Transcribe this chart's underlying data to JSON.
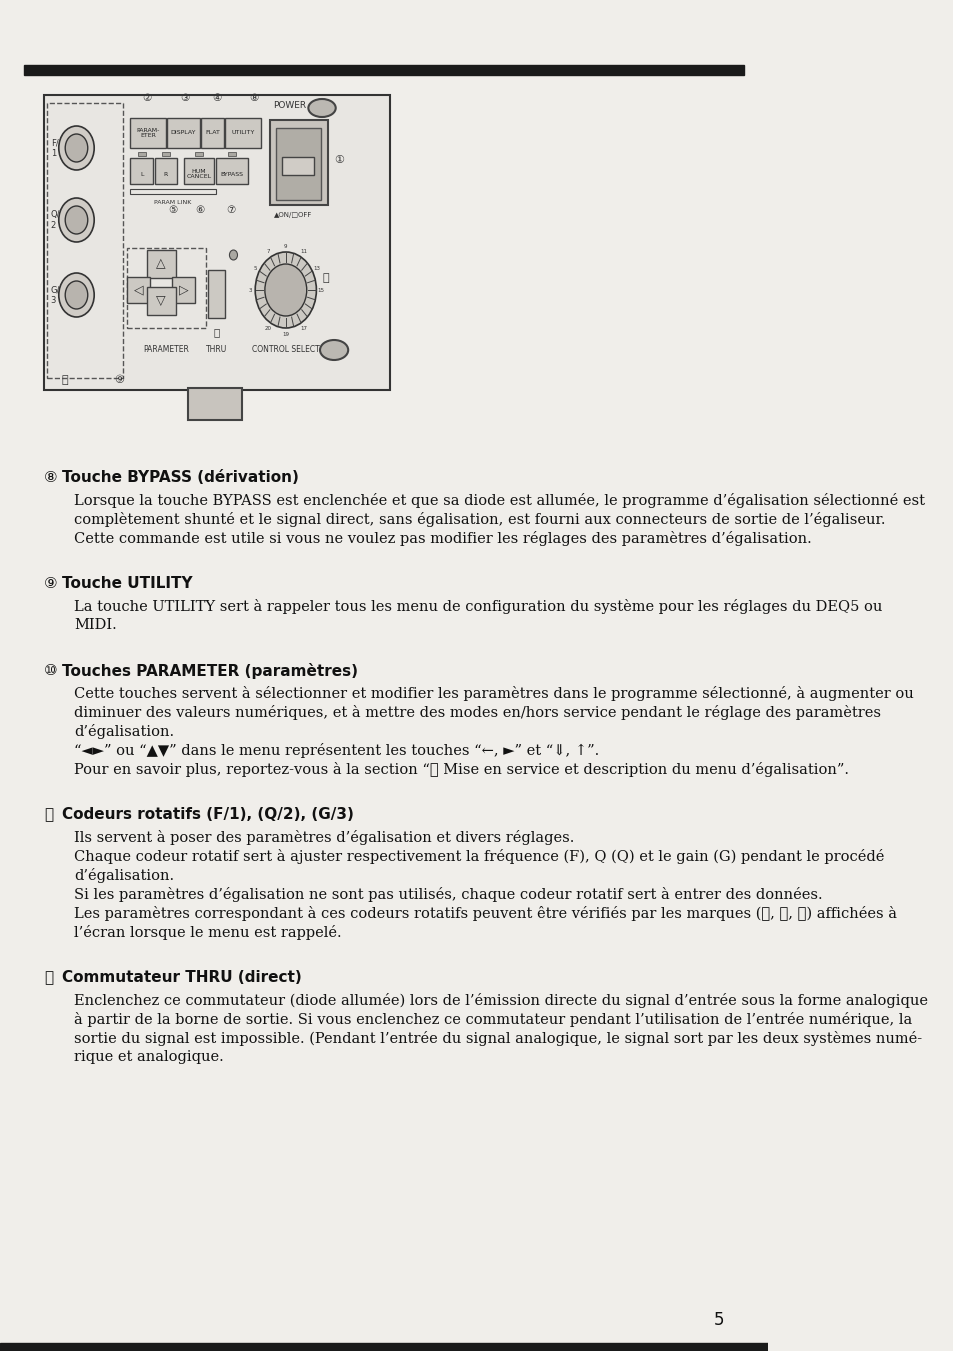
{
  "bg_color": "#f0eeea",
  "page_number": "5",
  "top_bar_color": "#1a1a1a",
  "sections": [
    {
      "number": "⑧",
      "title_bold": "Touche BYPASS (dérivation)",
      "body": "Lorsque la touche BYPASS est enclenchée et que sa diode est allumée, le programme d’égalisation sélectionné est\ncomplètement shunté et le signal direct, sans égalisation, est fourni aux connecteurs de sortie de l’égaliseur.\nCette commande est utile si vous ne voulez pas modifier les réglages des paramètres d’égalisation."
    },
    {
      "number": "⑨",
      "title_bold": "Touche UTILITY",
      "body": "La touche UTILITY sert à rappeler tous les menu de configuration du système pour les réglages du DEQ5 ou\nMIDI."
    },
    {
      "number": "⑩",
      "title_bold": "Touches PARAMETER (paramètres)",
      "body": "Cette touches servent à sélectionner et modifier les paramètres dans le programme sélectionné, à augmenter ou\ndiminuer des valeurs numériques, et à mettre des modes en/hors service pendant le réglage des paramètres\nd’égalisation.\n“◄►” ou “▲▼” dans le menu représentent les touches “←, ►” et “⇓, ↑”.\nPour en savoir plus, reportez-vous à la section “③ Mise en service et description du menu d’égalisation”."
    },
    {
      "number": "⑯",
      "title_bold": "Codeurs rotatifs (F/1), (Q/2), (G/3)",
      "body": "Ils servent à poser des paramètres d’égalisation et divers réglages.\nChaque codeur rotatif sert à ajuster respectivement la fréquence (F), Q (Q) et le gain (G) pendant le procédé\nd’égalisation.\nSi les paramètres d’égalisation ne sont pas utilisés, chaque codeur rotatif sert à entrer des données.\nLes paramètres correspondant à ces codeurs rotatifs peuvent être vérifiés par les marques (①, ②, ③) affichées à\nl’écran lorsque le menu est rappelé."
    },
    {
      "number": "⑪",
      "title_bold": "Commutateur THRU (direct)",
      "body": "Enclenchez ce commutateur (diode allumée) lors de l’émission directe du signal d’entrée sous la forme analogique\nà partir de la borne de sortie. Si vous enclenchez ce commutateur pendant l’utilisation de l’entrée numérique, la\nsortie du signal est impossible. (Pendant l’entrée du signal analogique, le signal sort par les deux systèmes numé-\nrique et analogique."
    }
  ]
}
